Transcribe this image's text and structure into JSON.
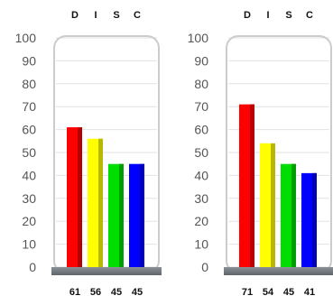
{
  "chart_data": [
    {
      "type": "bar",
      "categories": [
        "D",
        "I",
        "S",
        "C"
      ],
      "values": [
        61,
        56,
        45,
        45
      ],
      "ylim": [
        0,
        100
      ],
      "yticks": [
        "0",
        "10",
        "20",
        "30",
        "40",
        "50",
        "60",
        "70",
        "80",
        "90",
        "100"
      ],
      "value_labels": [
        "61",
        "56",
        "45",
        "45"
      ],
      "grid": true,
      "colors": [
        "#ff0000",
        "#ffff00",
        "#00dd00",
        "#0000ff"
      ]
    },
    {
      "type": "bar",
      "categories": [
        "D",
        "I",
        "S",
        "C"
      ],
      "values": [
        71,
        54,
        45,
        41
      ],
      "ylim": [
        0,
        100
      ],
      "yticks": [
        "0",
        "10",
        "20",
        "30",
        "40",
        "50",
        "60",
        "70",
        "80",
        "90",
        "100"
      ],
      "value_labels": [
        "71",
        "54",
        "45",
        "41"
      ],
      "grid": true,
      "colors": [
        "#ff0000",
        "#ffff00",
        "#00dd00",
        "#0000ff"
      ]
    }
  ]
}
